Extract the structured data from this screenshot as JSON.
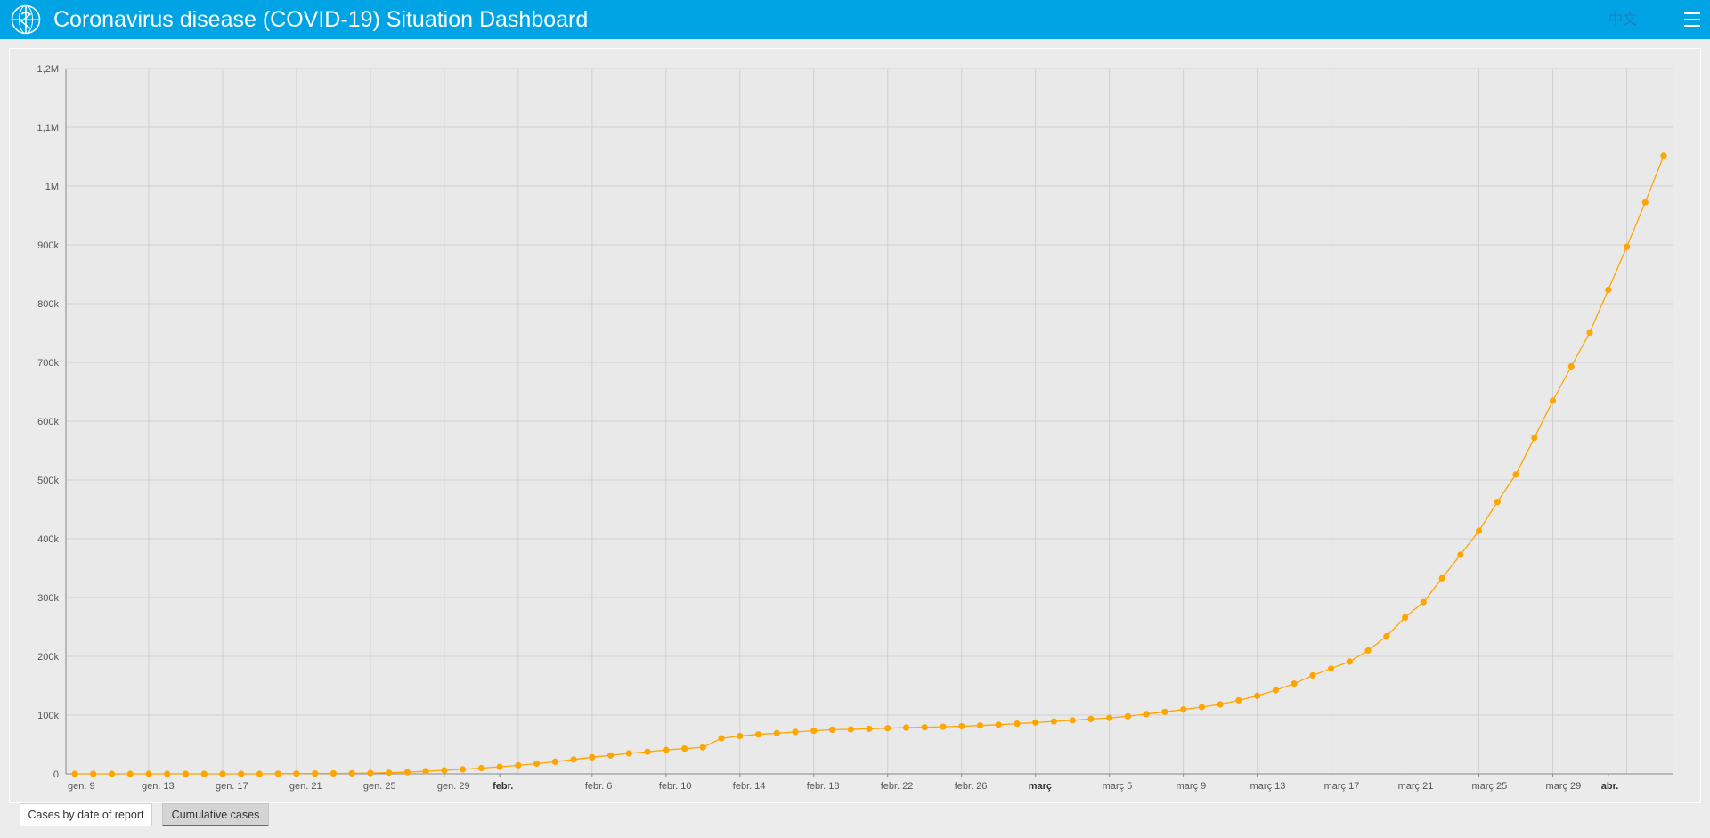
{
  "header": {
    "title": "Coronavirus disease (COVID-19) Situation Dashboard",
    "lang_label": "中文",
    "logo_icon": "who-emblem-icon",
    "menu_icon": "hamburger-menu-icon",
    "bar_color": "#00a4e4"
  },
  "tabs": [
    {
      "label": "Cases by date of report",
      "active": false
    },
    {
      "label": "Cumulative cases",
      "active": true
    }
  ],
  "chart_data": {
    "type": "line",
    "title": "",
    "xlabel": "",
    "ylabel": "",
    "series_color": "#ffa500",
    "grid": true,
    "ylim": [
      0,
      1200000
    ],
    "y_ticks": [
      {
        "value": 0,
        "label": "0"
      },
      {
        "value": 100000,
        "label": "100k"
      },
      {
        "value": 200000,
        "label": "200k"
      },
      {
        "value": 300000,
        "label": "300k"
      },
      {
        "value": 400000,
        "label": "400k"
      },
      {
        "value": 500000,
        "label": "500k"
      },
      {
        "value": 600000,
        "label": "600k"
      },
      {
        "value": 700000,
        "label": "700k"
      },
      {
        "value": 800000,
        "label": "800k"
      },
      {
        "value": 900000,
        "label": "900k"
      },
      {
        "value": 1000000,
        "label": "1M"
      },
      {
        "value": 1100000,
        "label": "1,1M"
      },
      {
        "value": 1200000,
        "label": "1,2M"
      }
    ],
    "xlim": [
      "2020-01-09",
      "2020-04-04"
    ],
    "x_ticks": [
      {
        "date": "2020-01-09",
        "label": "gen. 9",
        "bold": false
      },
      {
        "date": "2020-01-13",
        "label": "gen. 13",
        "bold": false
      },
      {
        "date": "2020-01-17",
        "label": "gen. 17",
        "bold": false
      },
      {
        "date": "2020-01-21",
        "label": "gen. 21",
        "bold": false
      },
      {
        "date": "2020-01-25",
        "label": "gen. 25",
        "bold": false
      },
      {
        "date": "2020-01-29",
        "label": "gen. 29",
        "bold": false
      },
      {
        "date": "2020-02-01",
        "label": "febr.",
        "bold": true
      },
      {
        "date": "2020-02-06",
        "label": "febr. 6",
        "bold": false
      },
      {
        "date": "2020-02-10",
        "label": "febr. 10",
        "bold": false
      },
      {
        "date": "2020-02-14",
        "label": "febr. 14",
        "bold": false
      },
      {
        "date": "2020-02-18",
        "label": "febr. 18",
        "bold": false
      },
      {
        "date": "2020-02-22",
        "label": "febr. 22",
        "bold": false
      },
      {
        "date": "2020-02-26",
        "label": "febr. 26",
        "bold": false
      },
      {
        "date": "2020-03-01",
        "label": "març",
        "bold": true
      },
      {
        "date": "2020-03-05",
        "label": "març 5",
        "bold": false
      },
      {
        "date": "2020-03-09",
        "label": "març 9",
        "bold": false
      },
      {
        "date": "2020-03-13",
        "label": "març 13",
        "bold": false
      },
      {
        "date": "2020-03-17",
        "label": "març 17",
        "bold": false
      },
      {
        "date": "2020-03-21",
        "label": "març 21",
        "bold": false
      },
      {
        "date": "2020-03-25",
        "label": "març 25",
        "bold": false
      },
      {
        "date": "2020-03-29",
        "label": "març 29",
        "bold": false
      },
      {
        "date": "2020-04-01",
        "label": "abr.",
        "bold": true
      }
    ],
    "series": [
      {
        "name": "Cumulative cases",
        "points": [
          {
            "date": "2020-01-09",
            "value": 0
          },
          {
            "date": "2020-01-10",
            "value": 0
          },
          {
            "date": "2020-01-11",
            "value": 0
          },
          {
            "date": "2020-01-12",
            "value": 0
          },
          {
            "date": "2020-01-13",
            "value": 0
          },
          {
            "date": "2020-01-14",
            "value": 0
          },
          {
            "date": "2020-01-15",
            "value": 0
          },
          {
            "date": "2020-01-16",
            "value": 0
          },
          {
            "date": "2020-01-17",
            "value": 0
          },
          {
            "date": "2020-01-18",
            "value": 0
          },
          {
            "date": "2020-01-19",
            "value": 0
          },
          {
            "date": "2020-01-20",
            "value": 300
          },
          {
            "date": "2020-01-21",
            "value": 400
          },
          {
            "date": "2020-01-22",
            "value": 600
          },
          {
            "date": "2020-01-23",
            "value": 800
          },
          {
            "date": "2020-01-24",
            "value": 900
          },
          {
            "date": "2020-01-25",
            "value": 1300
          },
          {
            "date": "2020-01-26",
            "value": 2000
          },
          {
            "date": "2020-01-27",
            "value": 2800
          },
          {
            "date": "2020-01-28",
            "value": 4500
          },
          {
            "date": "2020-01-29",
            "value": 6000
          },
          {
            "date": "2020-01-30",
            "value": 7800
          },
          {
            "date": "2020-01-31",
            "value": 9800
          },
          {
            "date": "2020-02-01",
            "value": 11900
          },
          {
            "date": "2020-02-02",
            "value": 14500
          },
          {
            "date": "2020-02-03",
            "value": 17400
          },
          {
            "date": "2020-02-04",
            "value": 20600
          },
          {
            "date": "2020-02-05",
            "value": 24500
          },
          {
            "date": "2020-02-06",
            "value": 28300
          },
          {
            "date": "2020-02-07",
            "value": 31500
          },
          {
            "date": "2020-02-08",
            "value": 34900
          },
          {
            "date": "2020-02-09",
            "value": 37600
          },
          {
            "date": "2020-02-10",
            "value": 40600
          },
          {
            "date": "2020-02-11",
            "value": 43100
          },
          {
            "date": "2020-02-12",
            "value": 45200
          },
          {
            "date": "2020-02-13",
            "value": 60400
          },
          {
            "date": "2020-02-14",
            "value": 64400
          },
          {
            "date": "2020-02-15",
            "value": 67100
          },
          {
            "date": "2020-02-16",
            "value": 69200
          },
          {
            "date": "2020-02-17",
            "value": 71300
          },
          {
            "date": "2020-02-18",
            "value": 73300
          },
          {
            "date": "2020-02-19",
            "value": 75200
          },
          {
            "date": "2020-02-20",
            "value": 75700
          },
          {
            "date": "2020-02-21",
            "value": 76700
          },
          {
            "date": "2020-02-22",
            "value": 77700
          },
          {
            "date": "2020-02-23",
            "value": 78800
          },
          {
            "date": "2020-02-24",
            "value": 79300
          },
          {
            "date": "2020-02-25",
            "value": 80200
          },
          {
            "date": "2020-02-26",
            "value": 81100
          },
          {
            "date": "2020-02-27",
            "value": 82300
          },
          {
            "date": "2020-02-28",
            "value": 83700
          },
          {
            "date": "2020-02-29",
            "value": 85500
          },
          {
            "date": "2020-03-01",
            "value": 87400
          },
          {
            "date": "2020-03-02",
            "value": 89300
          },
          {
            "date": "2020-03-03",
            "value": 91100
          },
          {
            "date": "2020-03-04",
            "value": 93400
          },
          {
            "date": "2020-03-05",
            "value": 95300
          },
          {
            "date": "2020-03-06",
            "value": 98000
          },
          {
            "date": "2020-03-07",
            "value": 101800
          },
          {
            "date": "2020-03-08",
            "value": 105600
          },
          {
            "date": "2020-03-09",
            "value": 109600
          },
          {
            "date": "2020-03-10",
            "value": 113700
          },
          {
            "date": "2020-03-11",
            "value": 118300
          },
          {
            "date": "2020-03-12",
            "value": 125200
          },
          {
            "date": "2020-03-13",
            "value": 132800
          },
          {
            "date": "2020-03-14",
            "value": 142500
          },
          {
            "date": "2020-03-15",
            "value": 153500
          },
          {
            "date": "2020-03-16",
            "value": 167500
          },
          {
            "date": "2020-03-17",
            "value": 179100
          },
          {
            "date": "2020-03-18",
            "value": 191100
          },
          {
            "date": "2020-03-19",
            "value": 209800
          },
          {
            "date": "2020-03-20",
            "value": 234100
          },
          {
            "date": "2020-03-21",
            "value": 266100
          },
          {
            "date": "2020-03-22",
            "value": 292100
          },
          {
            "date": "2020-03-23",
            "value": 332900
          },
          {
            "date": "2020-03-24",
            "value": 372800
          },
          {
            "date": "2020-03-25",
            "value": 413500
          },
          {
            "date": "2020-03-26",
            "value": 462700
          },
          {
            "date": "2020-03-27",
            "value": 509200
          },
          {
            "date": "2020-03-28",
            "value": 571700
          },
          {
            "date": "2020-03-29",
            "value": 634800
          },
          {
            "date": "2020-03-30",
            "value": 693200
          },
          {
            "date": "2020-03-31",
            "value": 750900
          },
          {
            "date": "2020-04-01",
            "value": 823600
          },
          {
            "date": "2020-04-02",
            "value": 896500
          },
          {
            "date": "2020-04-03",
            "value": 972300
          },
          {
            "date": "2020-04-04",
            "value": 1051600
          }
        ]
      }
    ]
  }
}
